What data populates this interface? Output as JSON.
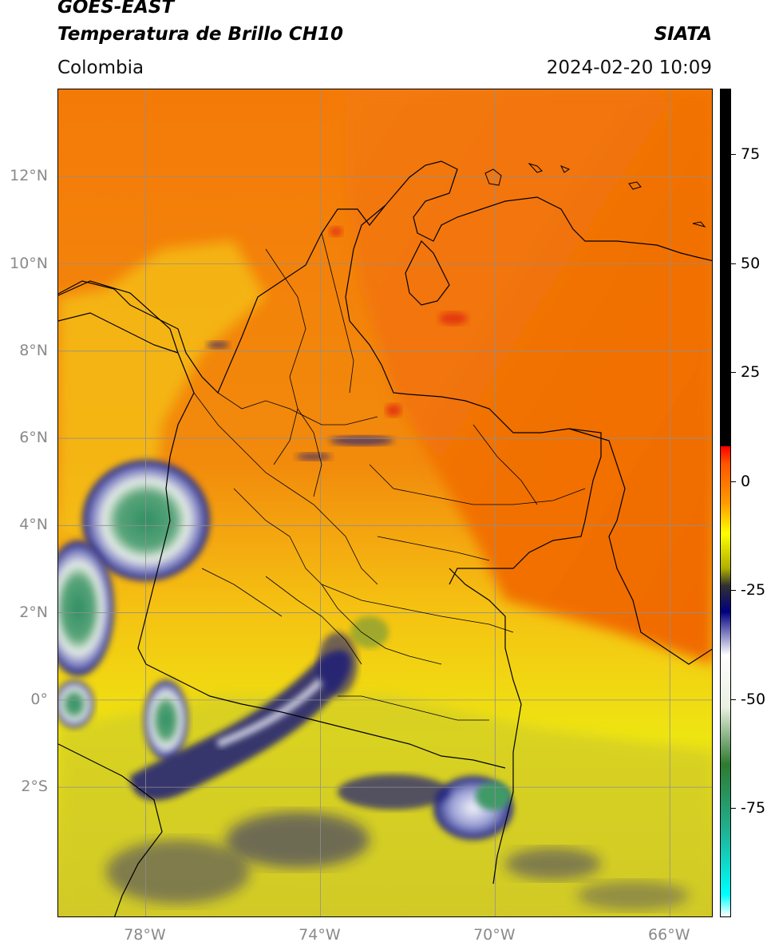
{
  "header": {
    "satellite": "GOES-EAST",
    "product": "Temperatura de Brillo CH10",
    "region": "Colombia",
    "agency": "SIATA",
    "datetime": "2024-02-20 10:09"
  },
  "map": {
    "lat_labels": [
      "12°N",
      "10°N",
      "8°N",
      "6°N",
      "4°N",
      "2°N",
      "0°",
      "2°S"
    ],
    "lon_labels": [
      "78°W",
      "74°W",
      "70°W",
      "66°W"
    ],
    "lat_values": [
      12,
      10,
      8,
      6,
      4,
      2,
      0,
      -2
    ],
    "lon_values": [
      -78,
      -74,
      -70,
      -66
    ],
    "extent": {
      "lon_min": -80,
      "lon_max": -65,
      "lat_min": -5,
      "lat_max": 14
    },
    "colors": {
      "background": "#f58a0a",
      "warm": "#f26f06",
      "yellow": "#f2ec10",
      "olive": "#c9c430",
      "navy": "#1d1f7a",
      "white": "#f0f0f6",
      "green": "#3c9a66",
      "grid": "#8f8f8f"
    }
  },
  "colorbar": {
    "ticks": [
      "75",
      "50",
      "25",
      "0",
      "-25",
      "-50",
      "-75"
    ],
    "tick_values": [
      75,
      50,
      25,
      0,
      -25,
      -50,
      -75
    ],
    "range": [
      -100,
      90
    ],
    "stops": [
      {
        "value": -100,
        "color": "#ffffff"
      },
      {
        "value": -95,
        "color": "#00ffff"
      },
      {
        "value": -80,
        "color": "#20b090"
      },
      {
        "value": -65,
        "color": "#2f7a30"
      },
      {
        "value": -52,
        "color": "#e8f0e0"
      },
      {
        "value": -40,
        "color": "#ffffff"
      },
      {
        "value": -30,
        "color": "#000080"
      },
      {
        "value": -24,
        "color": "#303030"
      },
      {
        "value": -20,
        "color": "#b0b000"
      },
      {
        "value": -12,
        "color": "#ffff00"
      },
      {
        "value": -5,
        "color": "#ff9900"
      },
      {
        "value": 4,
        "color": "#ff5500"
      },
      {
        "value": 8,
        "color": "#ff0000"
      },
      {
        "value": 8.01,
        "color": "#000000"
      },
      {
        "value": 90,
        "color": "#000000"
      }
    ]
  }
}
